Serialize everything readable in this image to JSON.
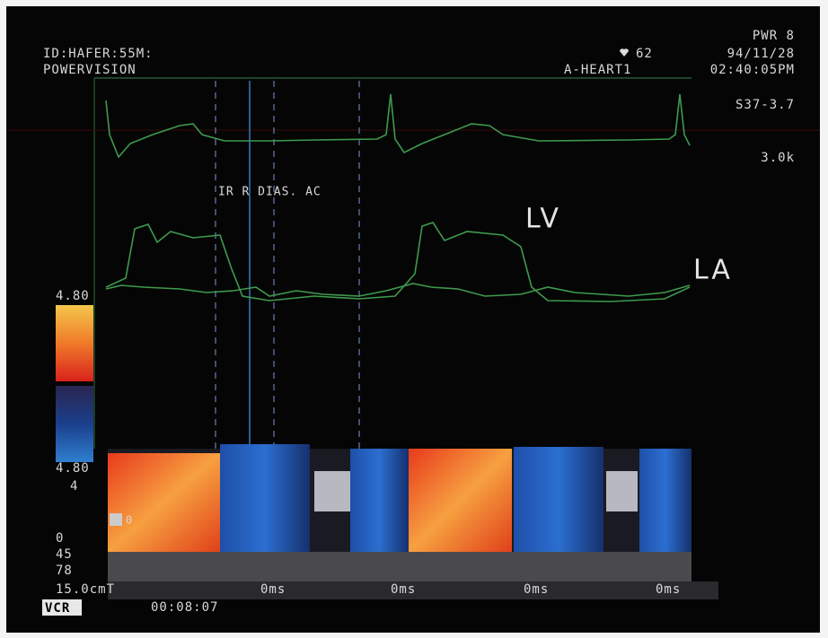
{
  "header": {
    "power": "PWR 8",
    "patient_id": "ID:HAFER:55M:",
    "heart_rate": "62",
    "date": "94/11/28",
    "mode": "POWERVISION",
    "preset": "A-HEART1",
    "time": "02:40:05PM",
    "probe": "S37-3.7",
    "frequency": "3.0k"
  },
  "annotations": {
    "phases": "IR R DIAS. AC",
    "lv": "LV",
    "la": "LA"
  },
  "color_scale": {
    "top": "4.80",
    "bottom": "4.80",
    "gain": "4",
    "baseline_marker": "0"
  },
  "side_labels": [
    "0",
    "45",
    "78",
    "15.0cmT"
  ],
  "time_labels": [
    "0ms",
    "0ms",
    "0ms",
    "0ms"
  ],
  "footer": {
    "source": "VCR",
    "counter": "00:08:07"
  }
}
